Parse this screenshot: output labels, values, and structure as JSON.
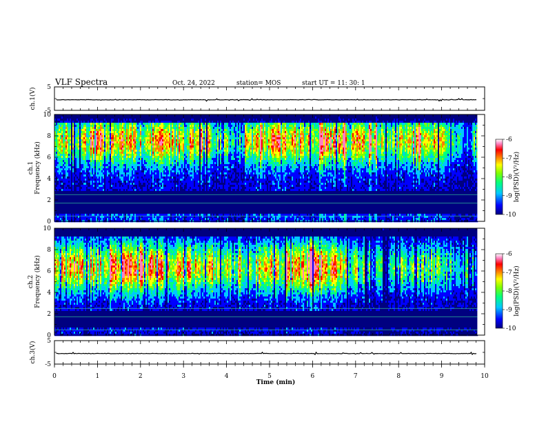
{
  "header": {
    "title": "VLF Spectra",
    "date": "Oct. 24, 2022",
    "station": "station= MOS",
    "start": "start  UT =   11: 30: 1"
  },
  "chart_data": [
    {
      "type": "line",
      "name": "ch1-voltage",
      "ylabel": "ch.1(V)",
      "ylim": [
        -5,
        5
      ],
      "yticks": [
        "5",
        "-5"
      ],
      "xlim": [
        0,
        10
      ],
      "baseline": -0.5
    },
    {
      "type": "heatmap",
      "name": "ch1-spectrogram",
      "ylabel_top": "ch.1",
      "ylabel": "Frequency (kHz)",
      "ylim": [
        0,
        10
      ],
      "yticks": [
        "0",
        "2",
        "4",
        "6",
        "8",
        "10"
      ],
      "xlim": [
        0,
        10
      ],
      "xmax_data": 9.83,
      "colorbar": {
        "range": [
          -10,
          -6
        ],
        "ticks": [
          "-6",
          "-7",
          "-8",
          "-9",
          "-10"
        ],
        "label": "log(PSD)(V²/Hz)"
      }
    },
    {
      "type": "heatmap",
      "name": "ch2-spectrogram",
      "ylabel_top": "ch.2",
      "ylabel": "Frequency (kHz)",
      "ylim": [
        0,
        10
      ],
      "yticks": [
        "0",
        "2",
        "4",
        "6",
        "8",
        "10"
      ],
      "xlim": [
        0,
        10
      ],
      "xmax_data": 9.83,
      "colorbar": {
        "range": [
          -10,
          -6
        ],
        "ticks": [
          "-6",
          "-7",
          "-8",
          "-9",
          "-10"
        ],
        "label": "log(PSD)(V²/Hz)"
      }
    },
    {
      "type": "line",
      "name": "ch3-voltage",
      "ylabel": "ch.3(V)",
      "ylim": [
        -5,
        5
      ],
      "yticks": [
        "5",
        "-5"
      ],
      "xlim": [
        0,
        10
      ],
      "baseline": -0.5,
      "xticks": [
        "0",
        "1",
        "2",
        "3",
        "4",
        "5",
        "6",
        "7",
        "8",
        "9",
        "10"
      ],
      "xlabel": "Time  (min)"
    }
  ],
  "colors": {
    "colormap": [
      "#000080",
      "#0000ff",
      "#00c8ff",
      "#00ff80",
      "#80ff00",
      "#ffff00",
      "#ff8000",
      "#ff0000",
      "#ff80c0",
      "#ffffff"
    ]
  }
}
